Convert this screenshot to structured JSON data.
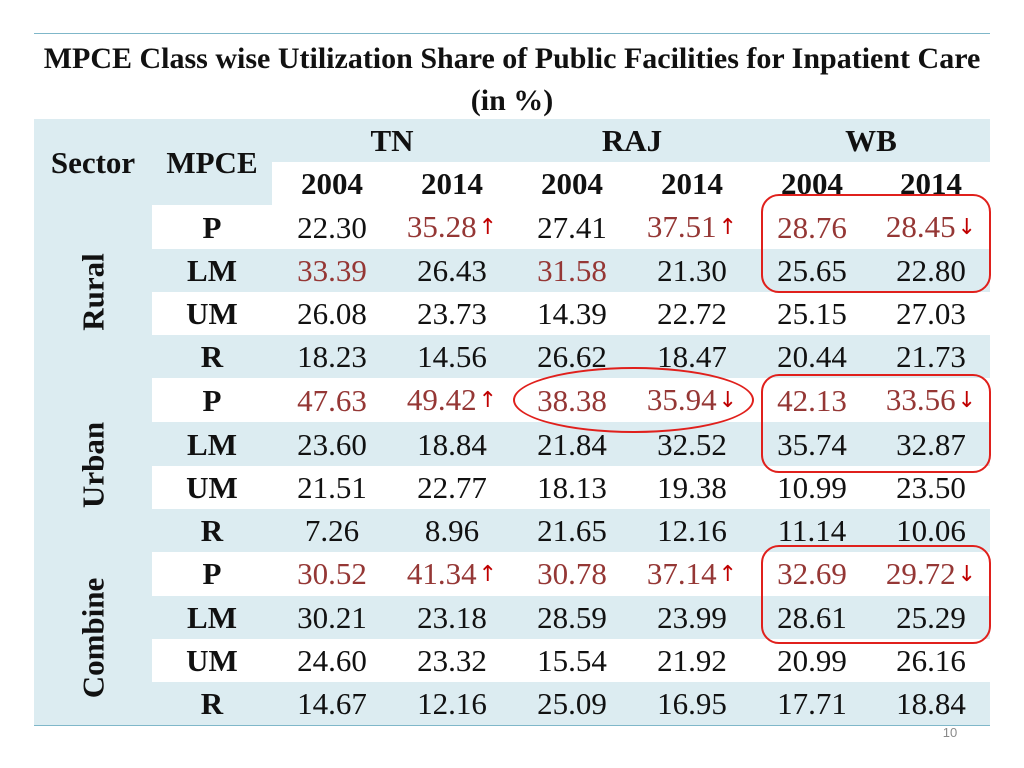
{
  "title": "MPCE Class wise Utilization Share of Public Facilities for Inpatient Care (in %)",
  "headers": {
    "sector": "Sector",
    "mpce": "MPCE",
    "states": [
      "TN",
      "RAJ",
      "WB"
    ],
    "years": [
      "2004",
      "2014",
      "2004",
      "2014",
      "2004",
      "2014"
    ]
  },
  "sectors": [
    {
      "label": "Rural",
      "rows": [
        {
          "mpce": "P",
          "values": [
            "22.30",
            "35.28",
            "27.41",
            "37.51",
            "28.76",
            "28.45"
          ]
        },
        {
          "mpce": "LM",
          "values": [
            "33.39",
            "26.43",
            "31.58",
            "21.30",
            "25.65",
            "22.80"
          ]
        },
        {
          "mpce": "UM",
          "values": [
            "26.08",
            "23.73",
            "14.39",
            "22.72",
            "25.15",
            "27.03"
          ]
        },
        {
          "mpce": "R",
          "values": [
            "18.23",
            "14.56",
            "26.62",
            "18.47",
            "20.44",
            "21.73"
          ]
        }
      ]
    },
    {
      "label": "Urban",
      "rows": [
        {
          "mpce": "P",
          "values": [
            "47.63",
            "49.42",
            "38.38",
            "35.94",
            "42.13",
            "33.56"
          ]
        },
        {
          "mpce": "LM",
          "values": [
            "23.60",
            "18.84",
            "21.84",
            "32.52",
            "35.74",
            "32.87"
          ]
        },
        {
          "mpce": "UM",
          "values": [
            "21.51",
            "22.77",
            "18.13",
            "19.38",
            "10.99",
            "23.50"
          ]
        },
        {
          "mpce": "R",
          "values": [
            "7.26",
            "8.96",
            "21.65",
            "12.16",
            "11.14",
            "10.06"
          ]
        }
      ]
    },
    {
      "label": "Combine",
      "rows": [
        {
          "mpce": "P",
          "values": [
            "30.52",
            "41.34",
            "30.78",
            "37.14",
            "32.69",
            "29.72"
          ]
        },
        {
          "mpce": "LM",
          "values": [
            "30.21",
            "23.18",
            "28.59",
            "23.99",
            "28.61",
            "25.29"
          ]
        },
        {
          "mpce": "UM",
          "values": [
            "24.60",
            "23.32",
            "15.54",
            "21.92",
            "20.99",
            "26.16"
          ]
        },
        {
          "mpce": "R",
          "values": [
            "14.67",
            "12.16",
            "25.09",
            "16.95",
            "17.71",
            "18.84"
          ]
        }
      ]
    }
  ],
  "trend_arrows": {
    "up": "↑",
    "down": "↓"
  },
  "colors": {
    "highlight_text": "#953735",
    "arrow": "#c00000",
    "annotation": "#e0201c",
    "band": "#dcecf1",
    "rule": "#7fb7c9"
  },
  "page_number": "10"
}
